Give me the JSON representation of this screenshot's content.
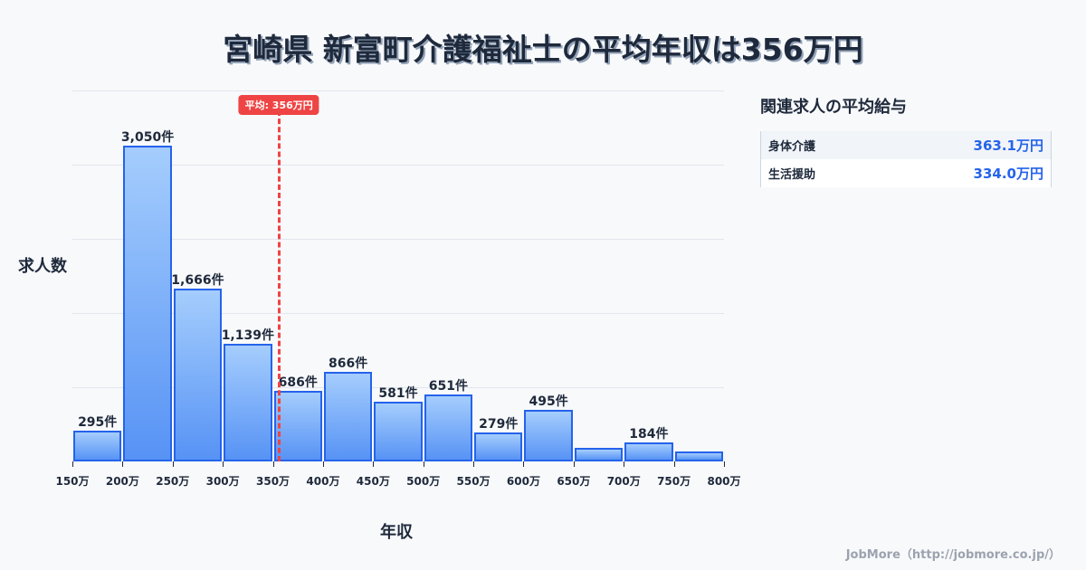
{
  "title": "宮崎県 新富町介護福祉士の平均年収は356万円",
  "chart_data": {
    "type": "bar",
    "title": "宮崎県 新富町介護福祉士の平均年収は356万円",
    "xlabel": "年収",
    "ylabel": "求人数",
    "x_ticks": [
      "150万",
      "200万",
      "250万",
      "300万",
      "350万",
      "400万",
      "450万",
      "500万",
      "550万",
      "600万",
      "650万",
      "700万",
      "750万",
      "800万"
    ],
    "categories": [
      "150-200万",
      "200-250万",
      "250-300万",
      "300-350万",
      "350-400万",
      "400-450万",
      "450-500万",
      "500-550万",
      "550-600万",
      "600-650万",
      "650-700万",
      "700-750万",
      "750-800万"
    ],
    "values": [
      295,
      3050,
      1666,
      1139,
      686,
      866,
      581,
      651,
      279,
      495,
      130,
      184,
      96
    ],
    "labels": [
      "295件",
      "3,050件",
      "1,666件",
      "1,139件",
      "686件",
      "866件",
      "581件",
      "651件",
      "279件",
      "495件",
      "",
      "184件",
      ""
    ],
    "ylim": [
      0,
      3585
    ],
    "grid": true,
    "annotation": {
      "label": "平均: 356万円",
      "x": 356,
      "color": "#ef4444"
    },
    "bar_color": "#2563eb"
  },
  "axes": {
    "ylabel": "求人数",
    "xlabel": "年収"
  },
  "sidebar": {
    "title": "関連求人の平均給与",
    "rows": [
      {
        "name": "身体介護",
        "value": "363.1万円"
      },
      {
        "name": "生活援助",
        "value": "334.0万円"
      }
    ]
  },
  "credit": "JobMore（http://jobmore.co.jp/）"
}
